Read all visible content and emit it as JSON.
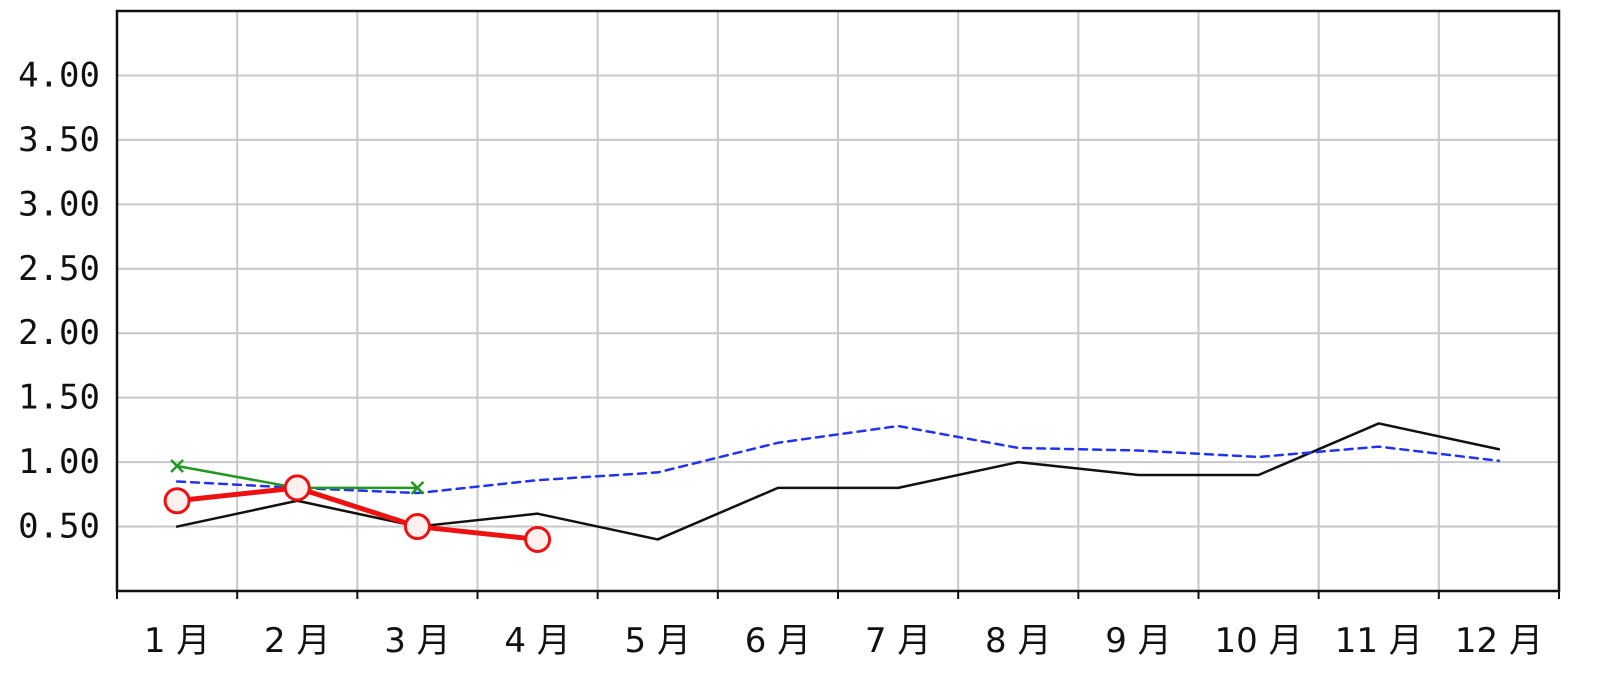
{
  "chart_data": {
    "type": "line",
    "title": "",
    "xlabel": "",
    "ylabel": "",
    "categories": [
      "1 月",
      "2 月",
      "3 月",
      "4 月",
      "5 月",
      "6 月",
      "7 月",
      "8 月",
      "9 月",
      "10 月",
      "11 月",
      "12 月"
    ],
    "ylim": [
      0,
      4.5
    ],
    "yticks": [
      0.5,
      1.0,
      1.5,
      2.0,
      2.5,
      3.0,
      3.5,
      4.0
    ],
    "ytick_labels": [
      "0.50",
      "1.00",
      "1.50",
      "2.00",
      "2.50",
      "3.00",
      "3.50",
      "4.00"
    ],
    "grid": true,
    "legend": "none",
    "series": [
      {
        "color": "#111111",
        "style": "solid",
        "marker": "none",
        "values": [
          0.5,
          0.7,
          0.5,
          0.6,
          0.4,
          0.8,
          0.8,
          1.0,
          0.9,
          0.9,
          1.3,
          1.1
        ]
      },
      {
        "color": "#2233ee",
        "style": "dashed",
        "marker": "none",
        "values": [
          0.85,
          0.8,
          0.76,
          0.86,
          0.92,
          1.15,
          1.28,
          1.11,
          1.09,
          1.04,
          1.12,
          1.01
        ]
      },
      {
        "color": "#229922",
        "style": "solid",
        "marker": "x",
        "values": [
          0.97,
          0.8,
          0.8,
          null,
          null,
          null,
          null,
          null,
          null,
          null,
          null,
          null
        ]
      },
      {
        "color": "#ee1111",
        "style": "solid-thick",
        "marker": "circle",
        "values": [
          0.7,
          0.8,
          0.5,
          0.4,
          null,
          null,
          null,
          null,
          null,
          null,
          null,
          null
        ]
      }
    ]
  }
}
